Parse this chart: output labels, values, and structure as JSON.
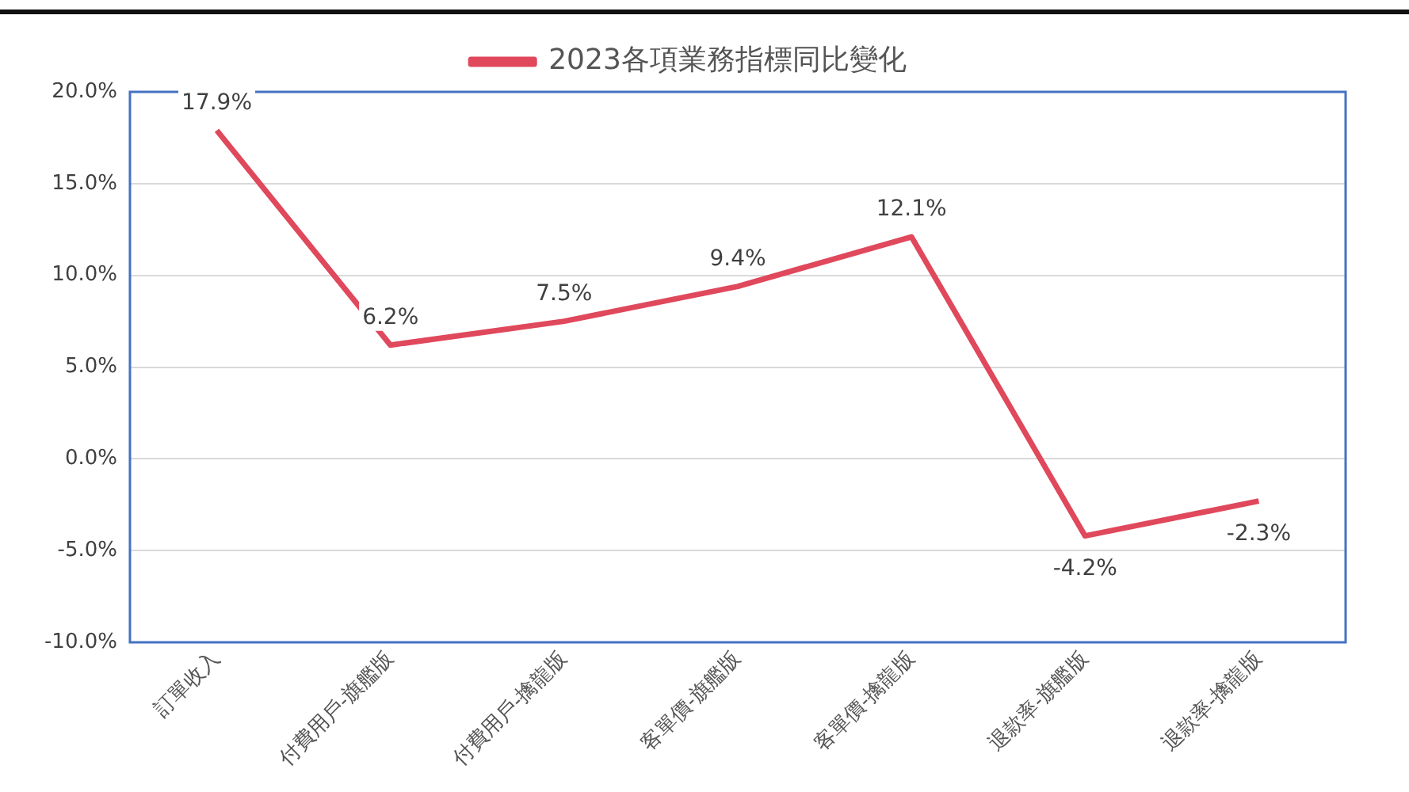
{
  "chart_data": {
    "type": "line",
    "categories": [
      "訂單收入",
      "付費用戶-旗艦版",
      "付費用戶-擒龍版",
      "客單價-旗艦版",
      "客單價-擒龍版",
      "退款率-旗艦版",
      "退款率-擒龍版"
    ],
    "series": [
      {
        "name": "2023各項業務指標同比變化",
        "color": "#e0485c",
        "values": [
          17.9,
          6.2,
          7.5,
          9.4,
          12.1,
          -4.2,
          -2.3
        ],
        "value_labels": [
          "17.9%",
          "6.2%",
          "7.5%",
          "9.4%",
          "12.1%",
          "-4.2%",
          "-2.3%"
        ]
      }
    ],
    "ylim": [
      -10,
      20
    ],
    "yticks": [
      {
        "value": -10,
        "label": "-10.0%"
      },
      {
        "value": -5,
        "label": "-5.0%"
      },
      {
        "value": 0,
        "label": "0.0%"
      },
      {
        "value": 5,
        "label": "5.0%"
      },
      {
        "value": 10,
        "label": "10.0%"
      },
      {
        "value": 15,
        "label": "15.0%"
      },
      {
        "value": 20,
        "label": "20.0%"
      }
    ],
    "grid": "y",
    "legend": "top",
    "marker": "none",
    "line_style": "solid"
  }
}
